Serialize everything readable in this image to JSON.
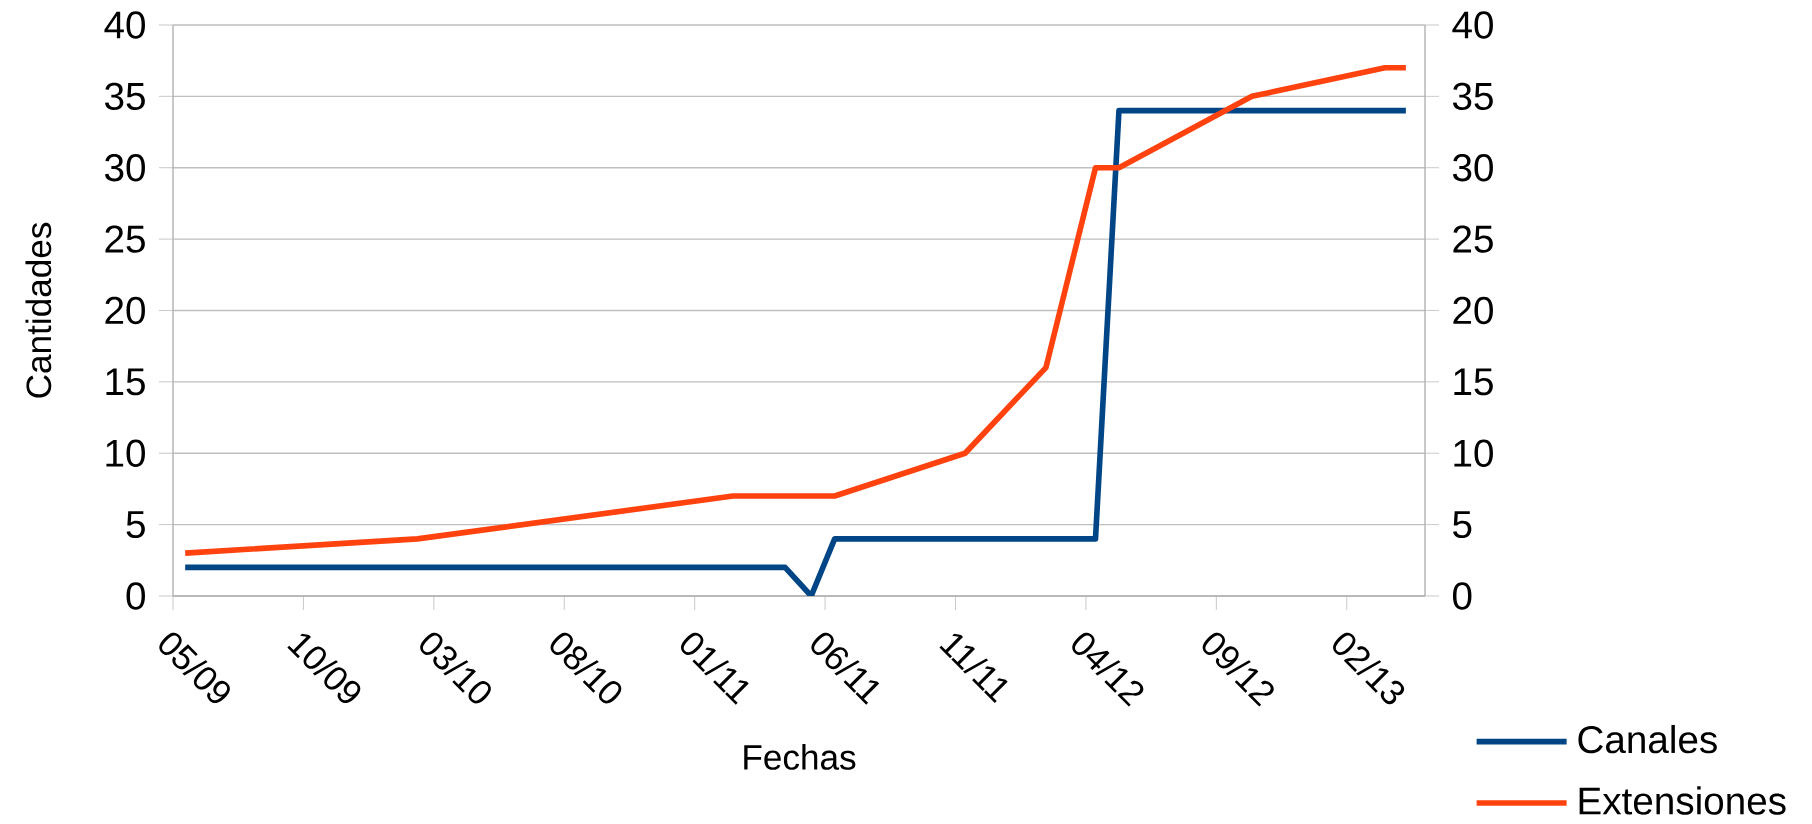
{
  "chart_data": {
    "type": "line",
    "xlabel": "Fechas",
    "ylabel": "Cantidades",
    "xlim": [
      "2009-05",
      "2013-05"
    ],
    "xticks": [
      {
        "value": "2009-05",
        "label": "05/09"
      },
      {
        "value": "2009-10",
        "label": "10/09"
      },
      {
        "value": "2010-03",
        "label": "03/10"
      },
      {
        "value": "2010-08",
        "label": "08/10"
      },
      {
        "value": "2011-01",
        "label": "01/11"
      },
      {
        "value": "2011-06",
        "label": "06/11"
      },
      {
        "value": "2011-11",
        "label": "11/11"
      },
      {
        "value": "2012-04",
        "label": "04/12"
      },
      {
        "value": "2012-09",
        "label": "09/12"
      },
      {
        "value": "2013-02",
        "label": "02/13"
      }
    ],
    "ylim": [
      0,
      40
    ],
    "yticks": [
      0,
      5,
      10,
      15,
      20,
      25,
      30,
      35,
      40
    ],
    "y2lim": [
      0,
      40
    ],
    "y2ticks": [
      0,
      5,
      10,
      15,
      20,
      25,
      30,
      35,
      40
    ],
    "grid": "y",
    "legend": "bottom right",
    "marker": "none",
    "line_style": "solid",
    "series": [
      {
        "name": "Canales",
        "color": "#004586",
        "x": [
          "2009-05-15",
          "2011-04-15",
          "2011-05-15",
          "2011-06-12",
          "2012-04-12",
          "2012-05-09",
          "2013-04-09"
        ],
        "values": [
          2,
          2,
          0,
          4,
          4,
          34,
          34
        ]
      },
      {
        "name": "Extensiones",
        "color": "#ff420e",
        "x": [
          "2009-05-15",
          "2010-02-12",
          "2011-02-15",
          "2011-06-12",
          "2011-11-12",
          "2012-02-15",
          "2012-04-12",
          "2012-05-09",
          "2012-10-12",
          "2013-03-15",
          "2013-04-09"
        ],
        "values": [
          3,
          4,
          7,
          7,
          10,
          16,
          30,
          30,
          35,
          37,
          37
        ]
      }
    ]
  }
}
